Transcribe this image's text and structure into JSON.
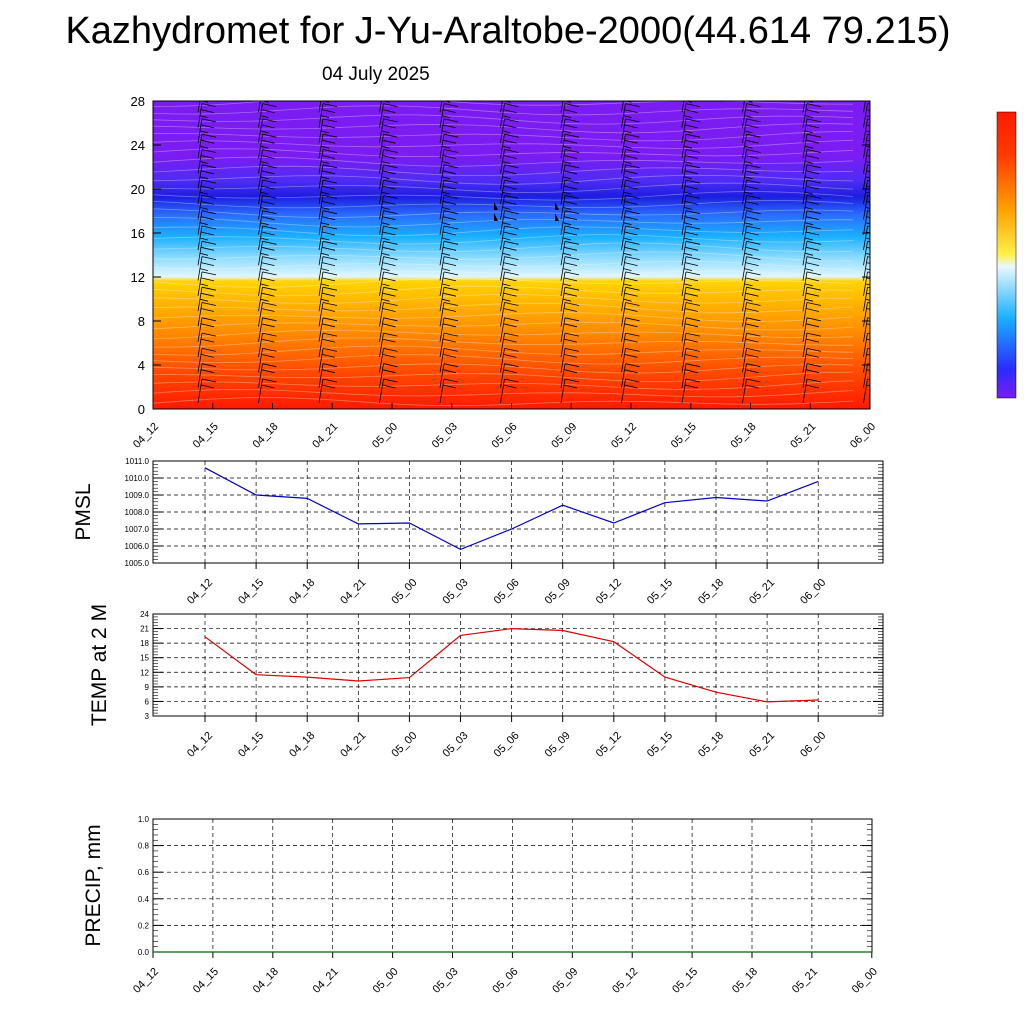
{
  "header": {
    "title": "Kazhydromet for J-Yu-Araltobe-2000(44.614 79.215)",
    "subtitle": "04 July 2025"
  },
  "chart_data": [
    {
      "type": "heatmap",
      "name": "wind-temperature-cross-section",
      "x_tick_labels": [
        "04_12",
        "04_15",
        "04_18",
        "04_21",
        "05_00",
        "05_03",
        "05_06",
        "05_09",
        "05_12",
        "05_15",
        "05_18",
        "05_21",
        "06_00"
      ],
      "y_ticks": [
        0,
        4,
        8,
        12,
        16,
        20,
        24,
        28
      ],
      "ylim": [
        0,
        28
      ],
      "colorscale": [
        "#7a1cf2",
        "#2b2bff",
        "#1ab0ff",
        "#fff14a",
        "#ffa000",
        "#ff1a00"
      ],
      "levels_upper_band_start": 12,
      "wind_barbs": true,
      "colorbar": true
    },
    {
      "type": "line",
      "name": "pmsl",
      "ylabel": "PMSL",
      "x": [
        "04_12",
        "04_15",
        "04_18",
        "04_21",
        "05_00",
        "05_03",
        "05_06",
        "05_09",
        "05_12",
        "05_15",
        "05_18",
        "05_21",
        "06_00"
      ],
      "values": [
        1010.6,
        1009.0,
        1008.8,
        1007.3,
        1007.35,
        1005.8,
        1007.0,
        1008.4,
        1007.35,
        1008.55,
        1008.85,
        1008.65,
        1009.8
      ],
      "ylim": [
        1005.0,
        1011.0
      ],
      "y_ticks": [
        "1005.0",
        "1006.0",
        "1007.0",
        "1008.0",
        "1009.0",
        "1010.0",
        "1011.0"
      ],
      "color": "#0000cc",
      "grid": true
    },
    {
      "type": "line",
      "name": "temp-2m",
      "ylabel": "TEMP at 2 M",
      "x": [
        "04_12",
        "04_15",
        "04_18",
        "04_21",
        "05_00",
        "05_03",
        "05_06",
        "05_09",
        "05_12",
        "05_15",
        "05_18",
        "05_21",
        "06_00"
      ],
      "values": [
        19.3,
        11.5,
        11.0,
        10.2,
        10.9,
        19.6,
        21.0,
        20.6,
        18.3,
        11.0,
        7.9,
        5.9,
        6.3
      ],
      "ylim": [
        3,
        24
      ],
      "y_ticks": [
        "3",
        "6",
        "9",
        "12",
        "15",
        "18",
        "21",
        "24"
      ],
      "color": "#dd0000",
      "grid": true
    },
    {
      "type": "line",
      "name": "precip",
      "ylabel": "PRECIP, mm",
      "x_tick_labels": [
        "04_12",
        "04_15",
        "04_18",
        "04_21",
        "05_00",
        "05_03",
        "05_06",
        "05_09",
        "05_12",
        "05_15",
        "05_18",
        "05_21",
        "06_00"
      ],
      "values": [
        0,
        0,
        0,
        0,
        0,
        0,
        0,
        0,
        0,
        0,
        0,
        0,
        0
      ],
      "ylim": [
        0.0,
        1.0
      ],
      "y_ticks": [
        "0.0",
        "0.2",
        "0.4",
        "0.6",
        "0.8",
        "1.0"
      ],
      "color": "#006600",
      "grid": true
    }
  ]
}
